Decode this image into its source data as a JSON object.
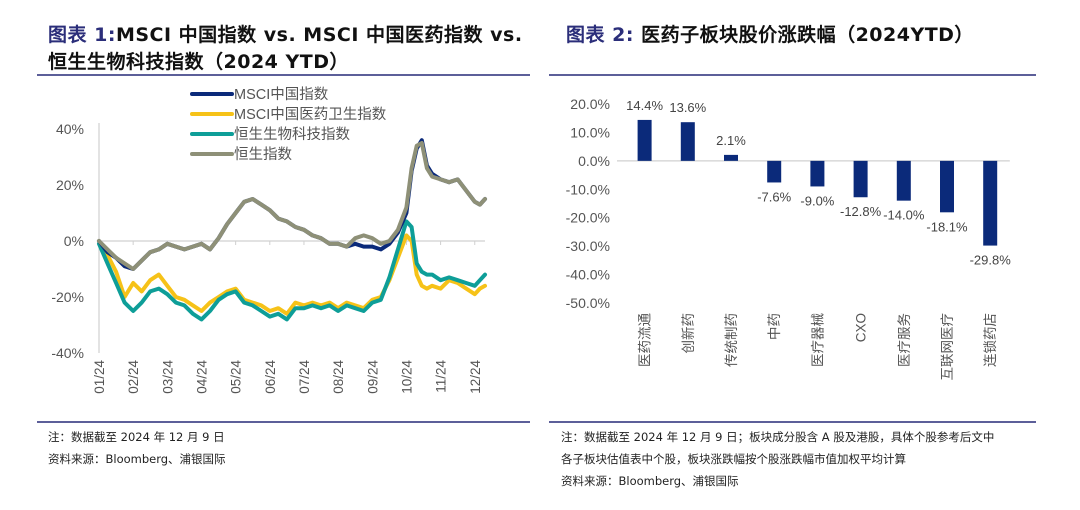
{
  "left": {
    "title_label": "图表 1:",
    "title_line1": "MSCI 中国指数 vs. MSCI 中国医药指数  vs.",
    "title_line2": "恒生生物科技指数（2024 YTD）",
    "note": "注：数据截至 2024 年 12 月 9 日",
    "source": "资料来源：Bloomberg、浦银国际"
  },
  "right": {
    "title_label": "图表 2:",
    "title_text": "医药子板块股价涨跌幅（2024YTD）",
    "note_line1": "注：数据截至 2024 年 12 月 9 日；板块成分股含 A 股及港股，具体个股参考后文中",
    "note_line2": "各子板块估值表中个股，板块涨跌幅按个股涨跌幅市值加权平均计算",
    "source": "资料来源：Bloomberg、浦银国际"
  },
  "chart_data": [
    {
      "type": "line",
      "title": "MSCI 中国指数 vs. MSCI 中国医药指数 vs. 恒生生物科技指数（2024 YTD）",
      "xlabel": "",
      "ylabel": "",
      "ylim": [
        -40,
        40
      ],
      "yticks": [
        "40%",
        "20%",
        "0%",
        "-20%",
        "-40%"
      ],
      "ytick_values": [
        40,
        20,
        0,
        -20,
        -40
      ],
      "xticks": [
        "01/24",
        "02/24",
        "03/24",
        "04/24",
        "05/24",
        "06/24",
        "07/24",
        "08/24",
        "09/24",
        "10/24",
        "11/24",
        "12/24"
      ],
      "x_range_months": [
        0,
        11.3
      ],
      "legend_position": "top",
      "x": [
        0,
        0.25,
        0.5,
        0.75,
        1,
        1.25,
        1.5,
        1.75,
        2,
        2.25,
        2.5,
        2.75,
        3,
        3.25,
        3.5,
        3.75,
        4,
        4.25,
        4.5,
        4.75,
        5,
        5.25,
        5.5,
        5.75,
        6,
        6.25,
        6.5,
        6.75,
        7,
        7.25,
        7.5,
        7.75,
        8,
        8.25,
        8.5,
        8.75,
        9,
        9.15,
        9.3,
        9.45,
        9.6,
        9.75,
        10,
        10.25,
        10.5,
        10.75,
        11,
        11.15,
        11.3
      ],
      "series": [
        {
          "name": "MSCI中国指数",
          "color": "#0b2a7a",
          "values": [
            0,
            -4,
            -6,
            -9,
            -10,
            -7,
            -4,
            -3,
            -1,
            -2,
            -3,
            -2,
            -1,
            -3,
            1,
            6,
            10,
            14,
            15,
            13,
            11,
            8,
            7,
            5,
            4,
            2,
            1,
            -1,
            -1,
            -2,
            -1,
            -2,
            -2,
            -3,
            -1,
            3,
            10,
            25,
            33,
            36,
            27,
            24,
            22,
            21,
            22,
            18,
            14,
            13,
            15
          ]
        },
        {
          "name": "MSCI中国医药卫生指数",
          "color": "#f6c218",
          "values": [
            0,
            -5,
            -11,
            -20,
            -15,
            -18,
            -14,
            -12,
            -16,
            -20,
            -21,
            -23,
            -25,
            -22,
            -20,
            -18,
            -17,
            -21,
            -22,
            -23,
            -25,
            -24,
            -26,
            -22,
            -23,
            -22,
            -23,
            -22,
            -24,
            -22,
            -23,
            -24,
            -21,
            -20,
            -14,
            -6,
            2,
            0,
            -12,
            -16,
            -17,
            -16,
            -17,
            -14,
            -15,
            -17,
            -19,
            -17,
            -16
          ]
        },
        {
          "name": "恒生生物科技指数",
          "color": "#0e9e98",
          "values": [
            -1,
            -8,
            -15,
            -22,
            -25,
            -22,
            -18,
            -17,
            -19,
            -22,
            -23,
            -26,
            -28,
            -25,
            -21,
            -19,
            -18,
            -22,
            -23,
            -25,
            -27,
            -26,
            -28,
            -24,
            -24,
            -23,
            -24,
            -23,
            -25,
            -23,
            -24,
            -25,
            -22,
            -21,
            -13,
            -3,
            7,
            5,
            -8,
            -11,
            -12,
            -12,
            -14,
            -13,
            -14,
            -15,
            -16,
            -14,
            -12
          ]
        },
        {
          "name": "恒生指数",
          "color": "#8e9077",
          "values": [
            0,
            -3,
            -6,
            -8,
            -10,
            -7,
            -4,
            -3,
            -1,
            -2,
            -3,
            -2,
            -1,
            -3,
            1,
            6,
            10,
            14,
            15,
            13,
            11,
            8,
            7,
            5,
            4,
            2,
            1,
            -1,
            -1,
            -2,
            1,
            2,
            1,
            -1,
            0,
            4,
            12,
            26,
            34,
            35,
            26,
            23,
            22,
            21,
            22,
            18,
            14,
            13,
            15
          ]
        }
      ]
    },
    {
      "type": "bar",
      "title": "医药子板块股价涨跌幅（2024YTD）",
      "xlabel": "",
      "ylabel": "",
      "ylim": [
        -50,
        20
      ],
      "yticks": [
        "20.0%",
        "10.0%",
        "0.0%",
        "-10.0%",
        "-20.0%",
        "-30.0%",
        "-40.0%",
        "-50.0%"
      ],
      "ytick_values": [
        20,
        10,
        0,
        -10,
        -20,
        -30,
        -40,
        -50
      ],
      "categories": [
        "医药流通",
        "创新药",
        "传统制药",
        "中药",
        "医疗器械",
        "CXO",
        "医疗服务",
        "互联网医疗",
        "连锁药店"
      ],
      "values": [
        14.4,
        13.6,
        2.1,
        -7.6,
        -9.0,
        -12.8,
        -14.0,
        -18.1,
        -29.8
      ],
      "data_labels": [
        "14.4%",
        "13.6%",
        "2.1%",
        "-7.6%",
        "-9.0%",
        "-12.8%",
        "-14.0%",
        "-18.1%",
        "-29.8%"
      ],
      "bar_color": "#0b2a7a",
      "legend_position": "none"
    }
  ]
}
